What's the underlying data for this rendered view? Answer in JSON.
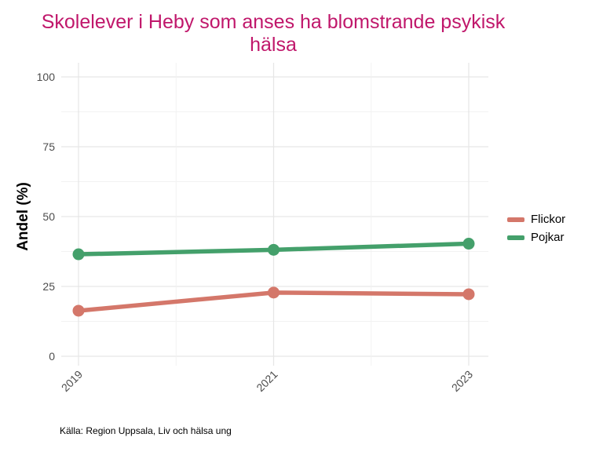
{
  "chart_data": {
    "type": "line",
    "title_line1": "Skolelever i Heby som anses ha blomstrande psykisk",
    "title_line2": "hälsa",
    "xlabel": "",
    "ylabel": "Andel (%)",
    "x": [
      "2019",
      "2021",
      "2023"
    ],
    "ylim": [
      0,
      100
    ],
    "yticks": [
      0,
      25,
      50,
      75,
      100
    ],
    "grid": true,
    "legend_position": "right",
    "series": [
      {
        "name": "Flickor",
        "color": "#d4776a",
        "values": [
          16.3,
          22.8,
          22.2
        ]
      },
      {
        "name": "Pojkar",
        "color": "#44a06b",
        "values": [
          36.5,
          38.1,
          40.3
        ]
      }
    ],
    "caption": "Källa: Region Uppsala, Liv och hälsa ung"
  }
}
